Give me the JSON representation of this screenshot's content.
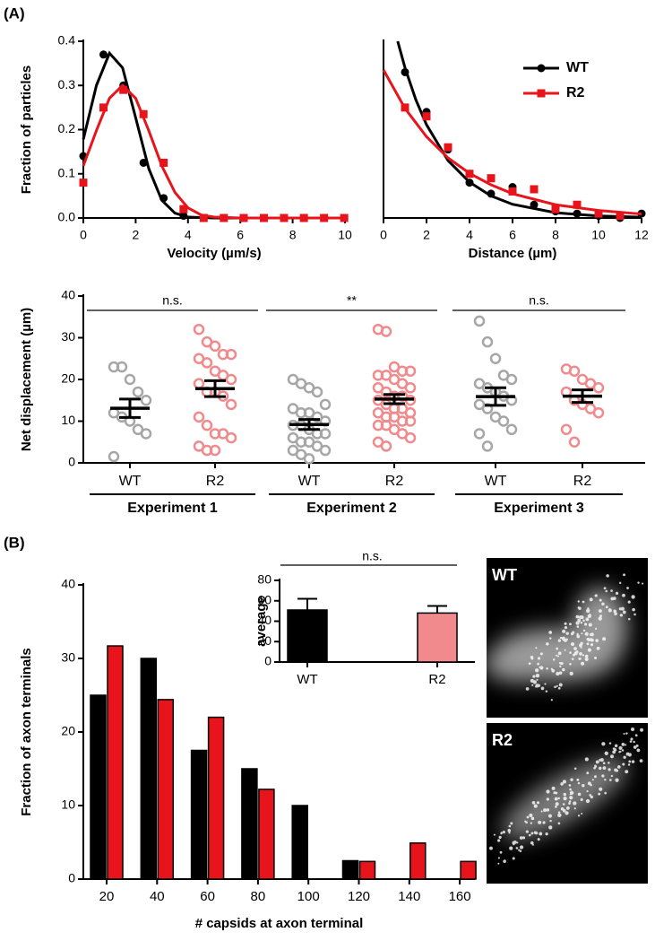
{
  "panel_labels": [
    "(A)",
    "(B)"
  ],
  "images": [
    {
      "label": "WT"
    },
    {
      "label": "R2"
    }
  ],
  "chart_data": [
    {
      "type": "scatter",
      "xlabel": "Velocity (µm/s)",
      "ylabel": "Fraction of particles",
      "xlim": [
        0,
        10
      ],
      "ylim": [
        0,
        0.4
      ],
      "xticks": [
        0,
        2,
        4,
        6,
        8,
        10
      ],
      "yticks": [
        {
          "value": 0,
          "label": "0.0"
        },
        0.1,
        0.2,
        0.3,
        0.4
      ],
      "series": [
        {
          "color": "#000000",
          "marker": "circle",
          "x": [
            0,
            0.77,
            1.53,
            2.3,
            3.07,
            3.83,
            4.6,
            5.37,
            6.13,
            6.9,
            7.67,
            8.43,
            9.2,
            9.97
          ],
          "values": [
            0.14,
            0.37,
            0.3,
            0.125,
            0.045,
            0.005,
            0,
            0,
            0,
            0,
            0,
            0,
            0,
            0
          ],
          "fit_x": [
            0,
            0.5,
            1,
            1.5,
            2,
            2.5,
            3,
            3.5,
            4,
            5,
            10
          ],
          "fit_values": [
            0.178,
            0.3,
            0.373,
            0.34,
            0.227,
            0.112,
            0.04,
            0.011,
            0.002,
            0,
            0
          ]
        },
        {
          "color": "#e8141b",
          "marker": "square",
          "x": [
            0,
            0.77,
            1.53,
            2.3,
            3.07,
            3.83,
            4.6,
            5.37,
            6.13,
            6.9,
            7.67,
            8.43,
            9.2,
            9.97
          ],
          "values": [
            0.08,
            0.25,
            0.29,
            0.235,
            0.125,
            0.02,
            0,
            0,
            0,
            0,
            0,
            0,
            0,
            0
          ],
          "fit_x": [
            0,
            0.5,
            1,
            1.5,
            2,
            2.5,
            3,
            3.5,
            4,
            4.5,
            5,
            6,
            10
          ],
          "fit_values": [
            0.118,
            0.198,
            0.271,
            0.3,
            0.271,
            0.198,
            0.118,
            0.058,
            0.023,
            0.007,
            0.002,
            0,
            0
          ]
        }
      ]
    },
    {
      "type": "scatter",
      "xlabel": "Distance (µm)",
      "legend": "upper right",
      "xlim": [
        0,
        12
      ],
      "ylim": [
        0,
        0.4
      ],
      "xticks": [
        0,
        2,
        4,
        6,
        8,
        10,
        12
      ],
      "series": [
        {
          "name": "WT",
          "color": "#000000",
          "marker": "circle",
          "x": [
            1,
            2,
            3,
            4,
            5,
            6,
            7,
            8,
            9,
            10,
            11,
            12
          ],
          "values": [
            0.33,
            0.24,
            0.155,
            0.08,
            0.055,
            0.07,
            0.03,
            0.015,
            0.01,
            0.005,
            0,
            0.01
          ],
          "fit_x": [
            0.66,
            1,
            1.5,
            2,
            3,
            4,
            5,
            6,
            8,
            10,
            12
          ],
          "fit_values": [
            0.4,
            0.34,
            0.268,
            0.211,
            0.13,
            0.081,
            0.05,
            0.031,
            0.012,
            0.0045,
            0.0017
          ]
        },
        {
          "name": "R2",
          "color": "#e8141b",
          "marker": "square",
          "x": [
            1,
            2,
            3,
            4,
            5,
            6,
            7,
            8,
            9,
            10,
            11
          ],
          "values": [
            0.25,
            0.23,
            0.16,
            0.1,
            0.09,
            0.06,
            0.065,
            0.02,
            0.03,
            0.01,
            0.005
          ],
          "fit_x": [
            0,
            1,
            2,
            3,
            4,
            5,
            6,
            8,
            10,
            12
          ],
          "fit_values": [
            0.335,
            0.248,
            0.184,
            0.136,
            0.101,
            0.075,
            0.055,
            0.03,
            0.017,
            0.009
          ]
        }
      ]
    },
    {
      "type": "strip",
      "ylabel": "Net displacement (µm)",
      "ylim": [
        0,
        40
      ],
      "yticks": [
        0,
        10,
        20,
        30,
        40
      ],
      "categories": [
        "WT",
        "R2",
        "WT",
        "R2",
        "WT",
        "R2"
      ],
      "group_labels": [
        "Experiment 1",
        "Experiment 2",
        "Experiment 3"
      ],
      "significance": [
        "n.s.",
        "**",
        "n.s."
      ],
      "colors": [
        "#a6a6a6",
        "#f08a8c",
        "#a6a6a6",
        "#f08a8c",
        "#a6a6a6",
        "#f08a8c"
      ],
      "points": [
        [
          23,
          23,
          20,
          17,
          15,
          12,
          11,
          10,
          8,
          7,
          1.5
        ],
        [
          32,
          29,
          28,
          26,
          26,
          25,
          24,
          22,
          21,
          20,
          19,
          17,
          17,
          16,
          14,
          11,
          9,
          7,
          7,
          6,
          4,
          3,
          3
        ],
        [
          20,
          19,
          18,
          17,
          14,
          13,
          12,
          12,
          11,
          10,
          9,
          9,
          8,
          7,
          7,
          6,
          5,
          5,
          4,
          3,
          3,
          2,
          1
        ],
        [
          32,
          31.5,
          23,
          22,
          22,
          21,
          21,
          20,
          19,
          18,
          18,
          17,
          16,
          16,
          15,
          15,
          14,
          13,
          13,
          12,
          12,
          11,
          11,
          10,
          10,
          9,
          9,
          8,
          7,
          6,
          5,
          4
        ],
        [
          34,
          29,
          25,
          21,
          20,
          19,
          18,
          17,
          16,
          15,
          14,
          13,
          11,
          10,
          8,
          7,
          4
        ],
        [
          22.5,
          22,
          20,
          19,
          18,
          17,
          15,
          14,
          13,
          12,
          8,
          5
        ]
      ],
      "means": [
        13.1,
        17.8,
        9.2,
        15.3,
        15.9,
        16
      ],
      "sems": [
        2.2,
        1.9,
        1.2,
        1.1,
        2.1,
        1.5
      ]
    },
    {
      "type": "bar",
      "xlabel": "# capsids at axon terminal",
      "ylabel": "Fraction of axon terminals",
      "ylim": [
        0,
        40
      ],
      "yticks": [
        0,
        10,
        20,
        30,
        40
      ],
      "categories": [
        20,
        40,
        60,
        80,
        100,
        120,
        140,
        160
      ],
      "series": [
        {
          "color": "#000000",
          "values": [
            25,
            30,
            17.5,
            15,
            10,
            2.5,
            0,
            0
          ]
        },
        {
          "color": "#e8141b",
          "values": [
            31.7,
            24.4,
            22,
            12.2,
            0,
            2.4,
            4.9,
            2.4
          ]
        }
      ]
    },
    {
      "type": "bar",
      "ylabel": "average",
      "significance": "n.s.",
      "ylim": [
        0,
        80
      ],
      "yticks": [
        0,
        20,
        40,
        60,
        80
      ],
      "categories": [
        "WT",
        "R2"
      ],
      "series": [
        {
          "colors": [
            "#000000",
            "#f08a8c"
          ],
          "values": [
            51,
            48
          ],
          "errors": [
            11,
            7
          ]
        }
      ]
    }
  ]
}
